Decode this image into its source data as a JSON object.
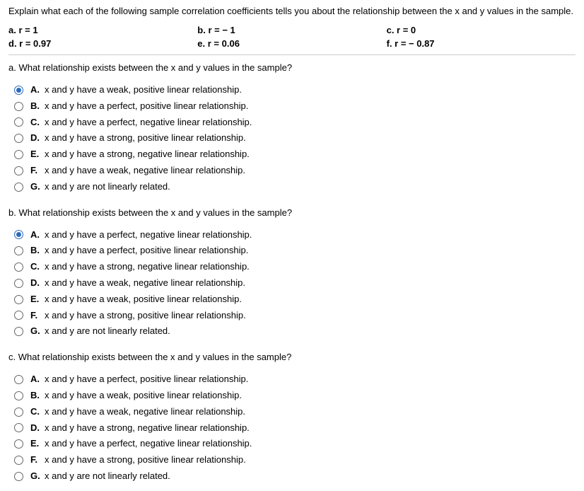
{
  "intro": "Explain what each of the following sample correlation coefficients tells you about the relationship between the x and y values in the sample.",
  "params": {
    "a": "a. r = 1",
    "b": "b. r = − 1",
    "c": "c. r = 0",
    "d": "d. r = 0.97",
    "e": "e. r = 0.06",
    "f": "f. r = − 0.87"
  },
  "qa": {
    "stem": "a. What relationship exists between the x and y values in the sample?",
    "options": {
      "A": "x and y have a weak, positive linear relationship.",
      "B": "x and y have a perfect, positive linear relationship.",
      "C": "x and y have a perfect, negative linear relationship.",
      "D": "x and y have a strong, positive linear relationship.",
      "E": "x and  y have a strong, negative linear relationship.",
      "F": "x and y have a weak, negative linear relationship.",
      "G": "x and y are not linearly related."
    },
    "selected": "A"
  },
  "qb": {
    "stem": "b. What relationship exists between the x and y values in the sample?",
    "options": {
      "A": "x and y have a perfect, negative linear relationship.",
      "B": "x and y have a perfect, positive linear relationship.",
      "C": "x and  y have a strong, negative linear relationship.",
      "D": "x and y have a weak, negative linear relationship.",
      "E": "x and y have a weak, positive linear relationship.",
      "F": "x and y have a strong, positive linear relationship.",
      "G": "x and y are not linearly related."
    },
    "selected": "A"
  },
  "qc": {
    "stem": "c. What relationship exists between the x and y values in the sample?",
    "options": {
      "A": "x and y have a perfect, positive linear relationship.",
      "B": "x and y have a weak, positive linear relationship.",
      "C": "x and y have a weak, negative linear relationship.",
      "D": "x and  y have a strong, negative linear relationship.",
      "E": "x and y have a perfect, negative linear relationship.",
      "F": "x and y have a strong, positive linear relationship.",
      "G": "x and y are not linearly related."
    },
    "selected": null
  },
  "letters": {
    "A": "A.",
    "B": "B.",
    "C": "C.",
    "D": "D.",
    "E": "E.",
    "F": "F.",
    "G": "G."
  }
}
